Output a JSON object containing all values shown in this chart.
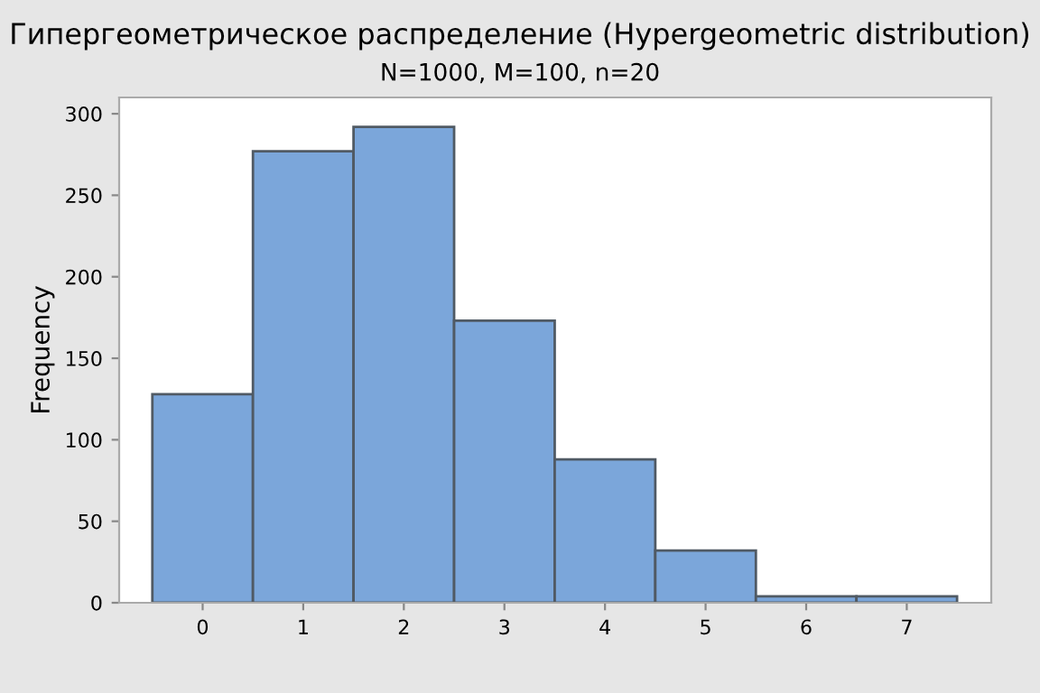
{
  "chart_data": {
    "type": "histogram",
    "title": "Гипергеометрическое распределение (Hypergeometric distribution)",
    "subtitle": "N=1000, M=100, n=20",
    "ylabel": "Frequency",
    "bins": [
      -0.5,
      0.5,
      1.5,
      2.5,
      3.5,
      4.5,
      5.5,
      6.5,
      7.5
    ],
    "values": [
      128,
      277,
      292,
      173,
      88,
      32,
      4,
      4
    ],
    "color": "#7ba6da",
    "xlim": [
      -0.83,
      7.84
    ],
    "xticks": [
      0,
      1,
      2,
      3,
      4,
      5,
      6,
      7
    ],
    "ylim": [
      0,
      310
    ],
    "yticks": [
      0,
      50,
      100,
      150,
      200,
      250,
      300
    ],
    "grid": false,
    "legend": false
  }
}
